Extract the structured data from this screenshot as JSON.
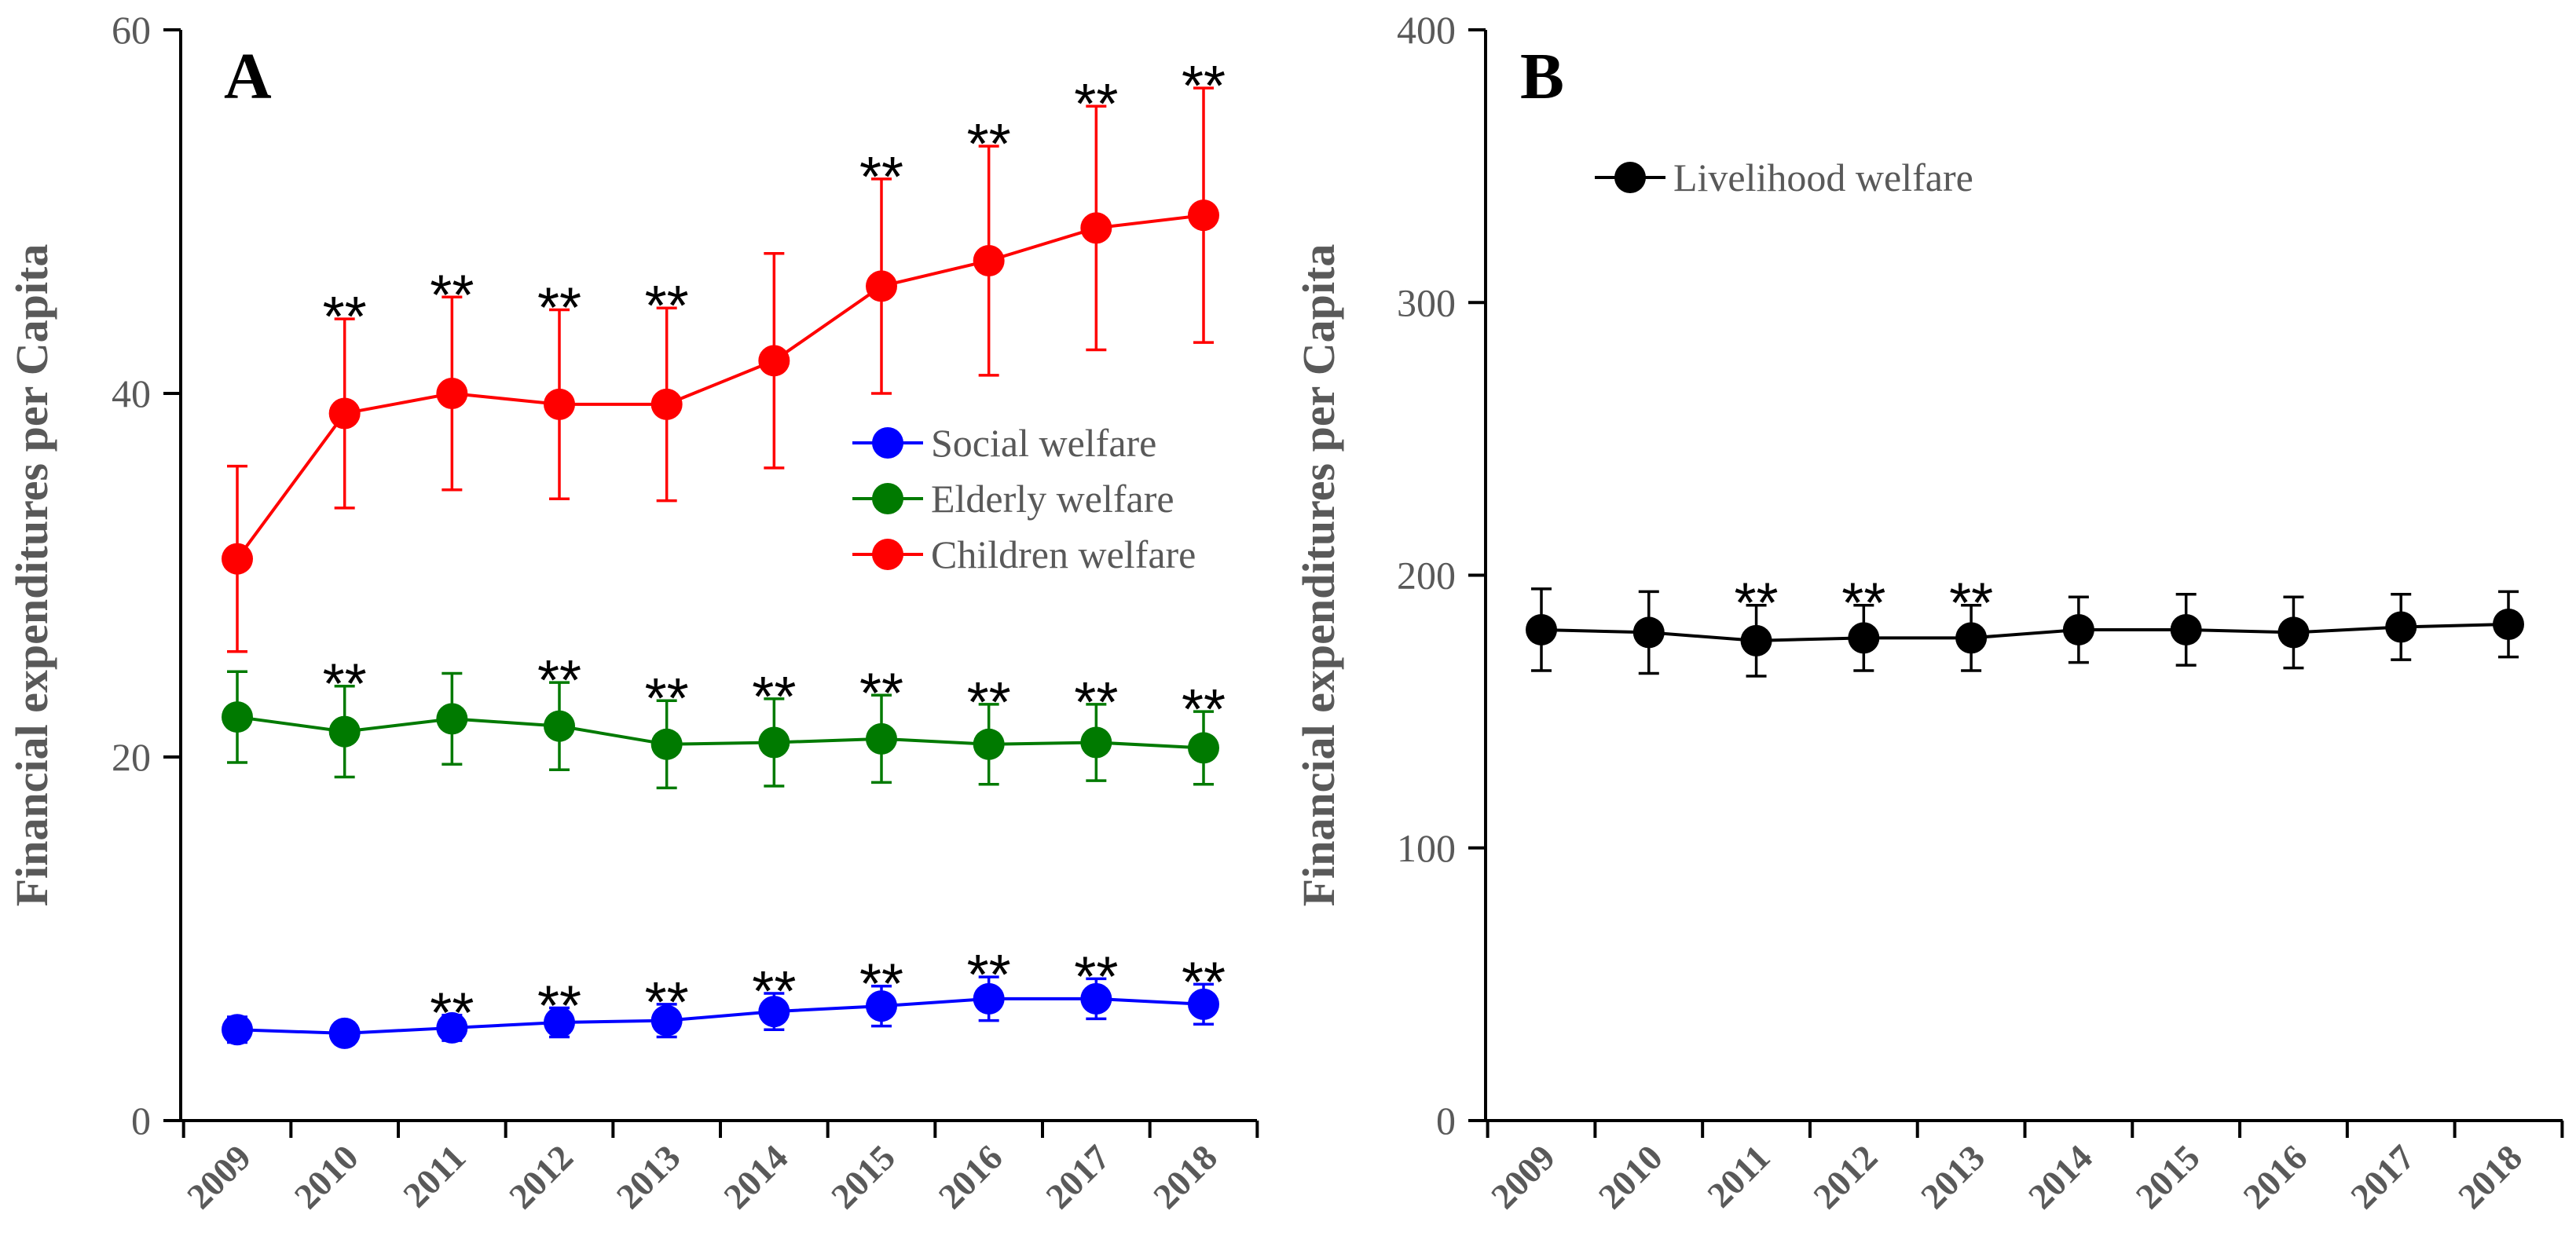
{
  "chart_data": [
    {
      "panel": "A",
      "type": "line",
      "ylabel": "Financial expenditures per Capita",
      "xlabel": "",
      "categories": [
        "2009",
        "2010",
        "2011",
        "2012",
        "2013",
        "2014",
        "2015",
        "2016",
        "2017",
        "2018"
      ],
      "ylim": [
        0,
        60
      ],
      "yticks": [
        0,
        20,
        40,
        60
      ],
      "legend_position": "center-right",
      "series": [
        {
          "name": "Social welfare",
          "color": "#0000ff",
          "values": [
            5.0,
            4.8,
            5.1,
            5.4,
            5.5,
            6.0,
            6.3,
            6.7,
            6.7,
            6.4
          ],
          "errors": [
            0.7,
            0.6,
            0.7,
            0.8,
            0.9,
            1.0,
            1.1,
            1.2,
            1.1,
            1.1
          ],
          "significance": [
            "",
            "",
            "**",
            "**",
            "**",
            "**",
            "**",
            "**",
            "**",
            "**"
          ]
        },
        {
          "name": "Elderly welfare",
          "color": "#007a00",
          "values": [
            22.2,
            21.4,
            22.1,
            21.7,
            20.7,
            20.8,
            21.0,
            20.7,
            20.8,
            20.5
          ],
          "errors": [
            2.5,
            2.5,
            2.5,
            2.4,
            2.4,
            2.4,
            2.4,
            2.2,
            2.1,
            2.0
          ],
          "significance": [
            "",
            "**",
            "",
            "**",
            "**",
            "**",
            "**",
            "**",
            "**",
            "**"
          ]
        },
        {
          "name": "Children welfare",
          "color": "#ff0000",
          "values": [
            30.9,
            38.9,
            40.0,
            39.4,
            39.4,
            41.8,
            45.9,
            47.3,
            49.1,
            49.8
          ],
          "errors": [
            5.1,
            5.2,
            5.3,
            5.2,
            5.3,
            5.9,
            5.9,
            6.3,
            6.7,
            7.0
          ],
          "significance": [
            "",
            "**",
            "**",
            "**",
            "**",
            "",
            "**",
            "**",
            "**",
            "**"
          ]
        }
      ]
    },
    {
      "panel": "B",
      "type": "line",
      "ylabel": "Financial expenditures per Capita",
      "xlabel": "",
      "categories": [
        "2009",
        "2010",
        "2011",
        "2012",
        "2013",
        "2014",
        "2015",
        "2016",
        "2017",
        "2018"
      ],
      "ylim": [
        0,
        400
      ],
      "yticks": [
        0,
        100,
        200,
        300,
        400
      ],
      "legend_position": "top-left",
      "series": [
        {
          "name": "Livelihood welfare",
          "color": "#000000",
          "values": [
            180,
            179,
            176,
            177,
            177,
            180,
            180,
            179,
            181,
            182
          ],
          "errors": [
            15,
            15,
            13,
            12,
            12,
            12,
            13,
            13,
            12,
            12
          ],
          "significance": [
            "",
            "",
            "**",
            "**",
            "**",
            "",
            "",
            "",
            "",
            ""
          ]
        }
      ]
    }
  ]
}
